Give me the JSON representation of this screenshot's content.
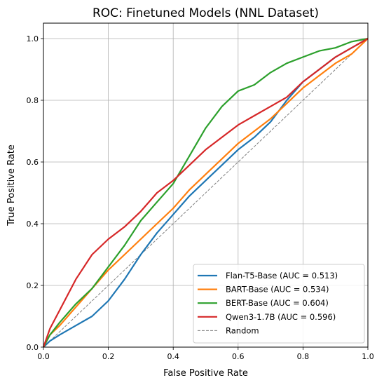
{
  "chart_data": {
    "type": "line",
    "title": "ROC: Finetuned Models (NNL Dataset)",
    "xlabel": "False Positive Rate",
    "ylabel": "True Positive Rate",
    "xlim": [
      0.0,
      1.0
    ],
    "ylim": [
      0.0,
      1.05
    ],
    "xticks": [
      "0.0",
      "0.2",
      "0.4",
      "0.6",
      "0.8",
      "1.0"
    ],
    "yticks": [
      "0.0",
      "0.2",
      "0.4",
      "0.6",
      "0.8",
      "1.0"
    ],
    "grid": true,
    "legend_position": "lower-right",
    "series": [
      {
        "name": "Flan-T5-Base (AUC = 0.513)",
        "color": "#1f77b4",
        "style": "solid",
        "x": [
          0,
          0.02,
          0.05,
          0.1,
          0.15,
          0.2,
          0.25,
          0.3,
          0.35,
          0.4,
          0.45,
          0.5,
          0.55,
          0.6,
          0.65,
          0.7,
          0.75,
          0.8,
          0.85,
          0.9,
          0.95,
          1.0
        ],
        "y": [
          0,
          0.02,
          0.04,
          0.07,
          0.1,
          0.15,
          0.22,
          0.3,
          0.37,
          0.43,
          0.49,
          0.54,
          0.59,
          0.64,
          0.68,
          0.73,
          0.8,
          0.86,
          0.9,
          0.94,
          0.97,
          1.0
        ]
      },
      {
        "name": "BART-Base (AUC = 0.534)",
        "color": "#ff7f0e",
        "style": "solid",
        "x": [
          0,
          0.02,
          0.05,
          0.1,
          0.15,
          0.2,
          0.25,
          0.3,
          0.35,
          0.4,
          0.45,
          0.5,
          0.55,
          0.6,
          0.65,
          0.7,
          0.75,
          0.8,
          0.85,
          0.9,
          0.95,
          1.0
        ],
        "y": [
          0,
          0.04,
          0.07,
          0.13,
          0.19,
          0.25,
          0.3,
          0.35,
          0.4,
          0.45,
          0.51,
          0.56,
          0.61,
          0.66,
          0.7,
          0.74,
          0.79,
          0.84,
          0.88,
          0.92,
          0.95,
          1.0
        ]
      },
      {
        "name": "BERT-Base (AUC = 0.604)",
        "color": "#2ca02c",
        "style": "solid",
        "x": [
          0,
          0.02,
          0.05,
          0.1,
          0.15,
          0.2,
          0.25,
          0.3,
          0.35,
          0.4,
          0.45,
          0.5,
          0.55,
          0.6,
          0.65,
          0.7,
          0.75,
          0.8,
          0.85,
          0.9,
          0.95,
          1.0
        ],
        "y": [
          0,
          0.04,
          0.08,
          0.14,
          0.19,
          0.26,
          0.33,
          0.41,
          0.47,
          0.53,
          0.62,
          0.71,
          0.78,
          0.83,
          0.85,
          0.89,
          0.92,
          0.94,
          0.96,
          0.97,
          0.99,
          1.0
        ]
      },
      {
        "name": "Qwen3-1.7B (AUC = 0.596)",
        "color": "#d62728",
        "style": "solid",
        "x": [
          0,
          0.02,
          0.05,
          0.1,
          0.15,
          0.2,
          0.25,
          0.3,
          0.35,
          0.4,
          0.45,
          0.5,
          0.55,
          0.6,
          0.65,
          0.7,
          0.75,
          0.8,
          0.85,
          0.9,
          0.95,
          1.0
        ],
        "y": [
          0,
          0.06,
          0.12,
          0.22,
          0.3,
          0.35,
          0.39,
          0.44,
          0.5,
          0.54,
          0.59,
          0.64,
          0.68,
          0.72,
          0.75,
          0.78,
          0.81,
          0.86,
          0.9,
          0.94,
          0.97,
          1.0
        ]
      },
      {
        "name": "Random",
        "color": "#808080",
        "style": "dashed",
        "x": [
          0,
          1
        ],
        "y": [
          0,
          1
        ]
      }
    ]
  }
}
